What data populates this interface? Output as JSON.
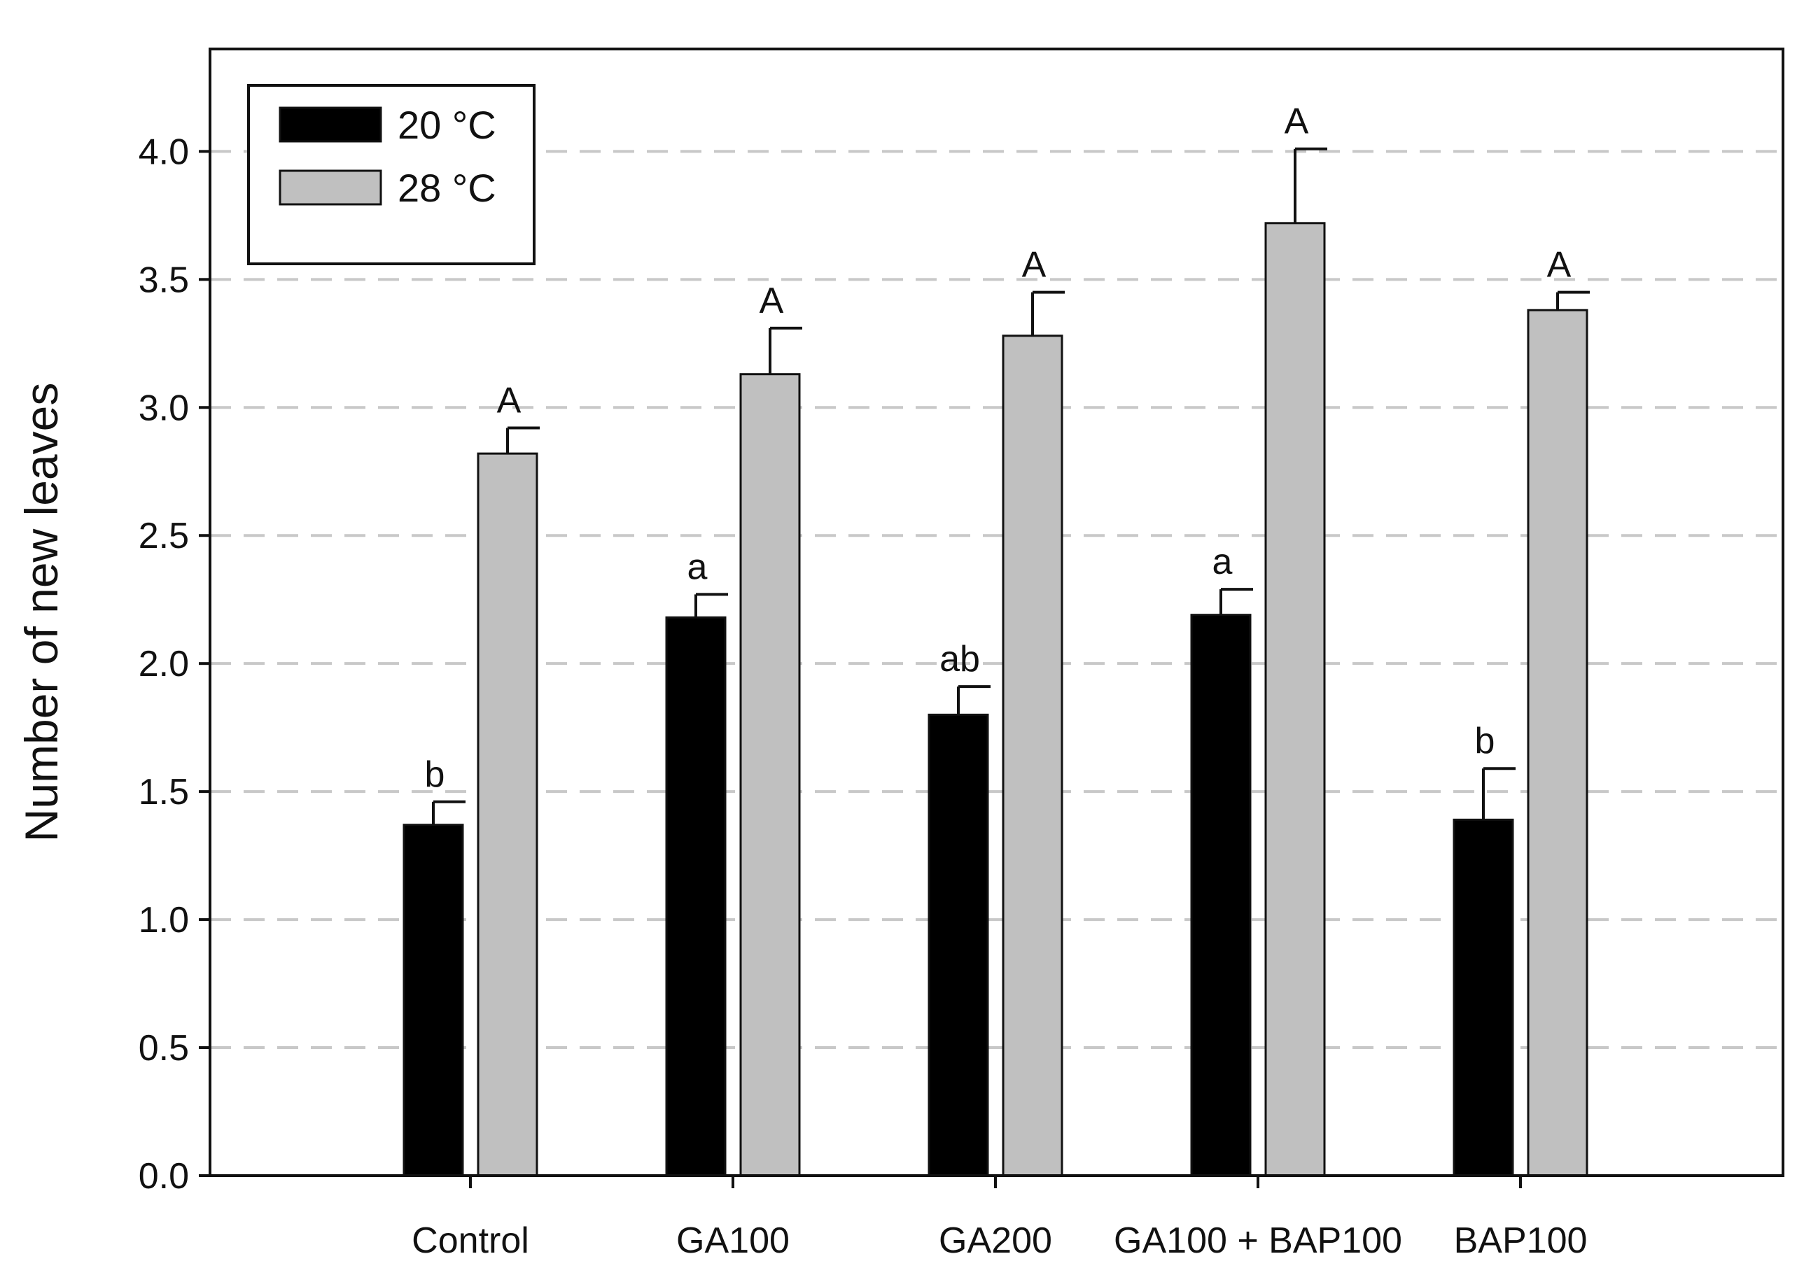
{
  "chart_data": {
    "type": "bar",
    "title": "",
    "xlabel": "",
    "ylabel": "Number of new leaves",
    "ylim": [
      0,
      4.4
    ],
    "y_ticks": [
      0.0,
      0.5,
      1.0,
      1.5,
      2.0,
      2.5,
      3.0,
      3.5,
      4.0
    ],
    "grid": "horizontal dashed",
    "legend_position": "top-left",
    "categories": [
      "Control",
      "GA100",
      "GA200",
      "GA100 + BAP100",
      "BAP100"
    ],
    "series": [
      {
        "name": "20 °C",
        "color": "#000000",
        "values": [
          1.37,
          2.18,
          1.8,
          2.19,
          1.39
        ],
        "errors": [
          0.09,
          0.09,
          0.11,
          0.1,
          0.2
        ],
        "letters": [
          "b",
          "a",
          "ab",
          "a",
          "b"
        ]
      },
      {
        "name": "28 °C",
        "color": "#c0c0c0",
        "values": [
          2.82,
          3.13,
          3.28,
          3.72,
          3.38
        ],
        "errors": [
          0.1,
          0.18,
          0.17,
          0.29,
          0.07
        ],
        "letters": [
          "A",
          "A",
          "A",
          "A",
          "A"
        ]
      }
    ]
  }
}
